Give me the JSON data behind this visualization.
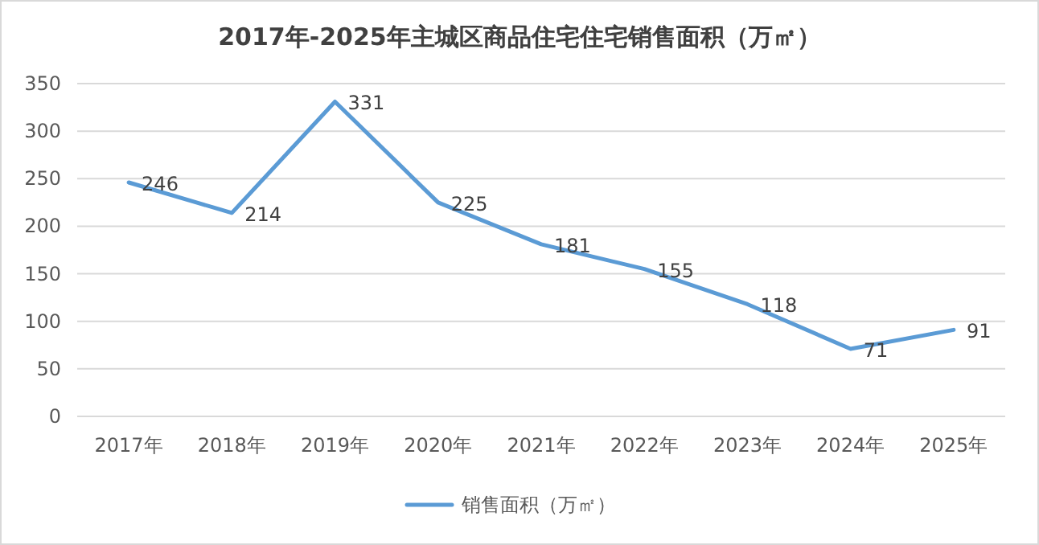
{
  "chart_data": {
    "type": "line",
    "title": "2017年-2025年主城区商品住宅住宅销售面积（万㎡）",
    "categories": [
      "2017年",
      "2018年",
      "2019年",
      "2020年",
      "2021年",
      "2022年",
      "2023年",
      "2024年",
      "2025年"
    ],
    "series": [
      {
        "name": "销售面积（万㎡）",
        "color": "#5b9bd5",
        "values": [
          246,
          214,
          331,
          225,
          181,
          155,
          118,
          71,
          91
        ]
      }
    ],
    "ylim": [
      0,
      350
    ],
    "yticks": [
      0,
      50,
      100,
      150,
      200,
      250,
      300,
      350
    ],
    "grid": "y",
    "legend": "bottom",
    "data_labels": true,
    "marker": "none",
    "line_style": "solid"
  }
}
